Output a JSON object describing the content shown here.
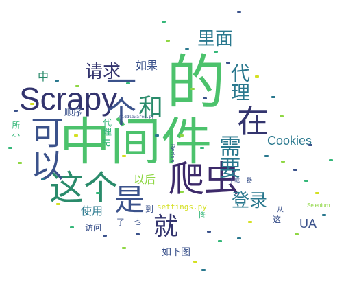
{
  "colors": {
    "big_green": "#4cc26c",
    "dark_green": "#2a8b6b",
    "teal": "#2a788e",
    "navy": "#33346e",
    "purple": "#3d2a6a",
    "dark_blue": "#3b528b",
    "lime": "#8fd744",
    "yellow": "#d4e022",
    "light_green": "#7ad151",
    "mid_green": "#35b779",
    "cyan": "#21918c",
    "small_teal": "#3c8f8a"
  },
  "words": {
    "de": "的",
    "zhongjianjian": "中间件",
    "scrapy": "Scrapy",
    "zheige": "这个",
    "pachong": "爬虫",
    "shi": "是",
    "zai": "在",
    "keyi": "可以",
    "yige": "一个",
    "jiu": "就",
    "he": "和",
    "qingqiu": "请求",
    "limian": "里面",
    "daili": "代理",
    "xuyao": "需要",
    "denglu": "登录",
    "cookies": "Cookies",
    "ua": "UA",
    "shiyong": "使用",
    "yihou": "以后",
    "ruguo": "如果",
    "ruxiatu": "如下图",
    "settings": "settings.py",
    "shunxu": "顺序",
    "daili_ip": "代理 IP",
    "zhong": "中",
    "dao": "到",
    "tu": "图",
    "suoshi": "所示",
    "redis": "Redis",
    "fangwen": "访问",
    "le": "了",
    "cong": "从",
    "zhe": "这",
    "yi": "也",
    "selenium": "Selenium",
    "xiazai": "下载",
    "qi": "器",
    "middlewares": "middlewares.py"
  }
}
